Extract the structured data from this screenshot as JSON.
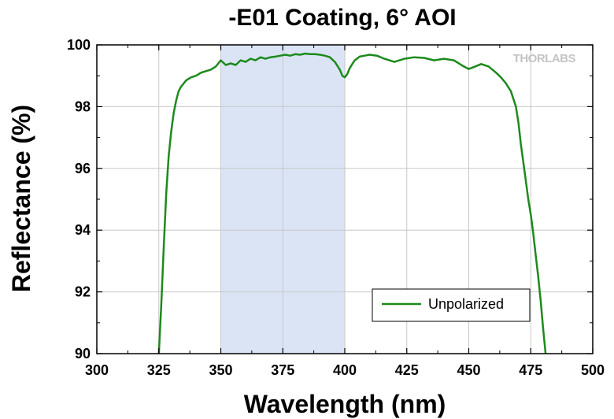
{
  "chart_data": {
    "type": "line",
    "title": "-E01 Coating, 6° AOI",
    "xlabel": "Wavelength (nm)",
    "ylabel": "Reflectance (%)",
    "xlim": [
      300,
      500
    ],
    "ylim": [
      90,
      100
    ],
    "xticks": [
      "300",
      "325",
      "350",
      "375",
      "400",
      "425",
      "450",
      "475",
      "500"
    ],
    "yticks": [
      "90",
      "92",
      "94",
      "96",
      "98",
      "100"
    ],
    "grid": true,
    "highlight_band": {
      "x_start": 350,
      "x_end": 400,
      "color": "#dbe4f5"
    },
    "legend": {
      "position": "bottom-right",
      "entries": [
        "Unpolarized"
      ]
    },
    "watermark": "THORLABS",
    "series": [
      {
        "name": "Unpolarized",
        "color": "#1c8a1c",
        "x": [
          325,
          326,
          327,
          328,
          329,
          330,
          331,
          332,
          333,
          334,
          335,
          336,
          337,
          338,
          340,
          342,
          344,
          346,
          348,
          350,
          352,
          354,
          356,
          358,
          360,
          362,
          364,
          366,
          368,
          370,
          372,
          374,
          376,
          378,
          380,
          382,
          384,
          386,
          388,
          390,
          392,
          394,
          396,
          398,
          399,
          400,
          401,
          402,
          404,
          406,
          408,
          410,
          413,
          416,
          420,
          424,
          428,
          432,
          436,
          440,
          444,
          448,
          450,
          452,
          455,
          458,
          461,
          463,
          465,
          467,
          469,
          470,
          471,
          472,
          473,
          474,
          475,
          476,
          477,
          478,
          479,
          480,
          481
        ],
        "y": [
          90.0,
          91.6,
          93.5,
          95.2,
          96.4,
          97.2,
          97.8,
          98.2,
          98.5,
          98.65,
          98.75,
          98.85,
          98.9,
          98.95,
          99.0,
          99.1,
          99.15,
          99.2,
          99.3,
          99.5,
          99.35,
          99.4,
          99.35,
          99.5,
          99.45,
          99.55,
          99.5,
          99.6,
          99.55,
          99.6,
          99.62,
          99.65,
          99.68,
          99.65,
          99.7,
          99.68,
          99.72,
          99.7,
          99.7,
          99.68,
          99.65,
          99.6,
          99.45,
          99.2,
          99.0,
          98.95,
          99.05,
          99.25,
          99.5,
          99.62,
          99.65,
          99.68,
          99.65,
          99.55,
          99.45,
          99.55,
          99.6,
          99.58,
          99.5,
          99.55,
          99.5,
          99.3,
          99.22,
          99.28,
          99.38,
          99.3,
          99.1,
          98.95,
          98.75,
          98.5,
          98.0,
          97.5,
          96.8,
          96.2,
          95.6,
          95.0,
          94.5,
          93.9,
          93.2,
          92.5,
          91.7,
          90.8,
          90.0
        ]
      }
    ]
  }
}
